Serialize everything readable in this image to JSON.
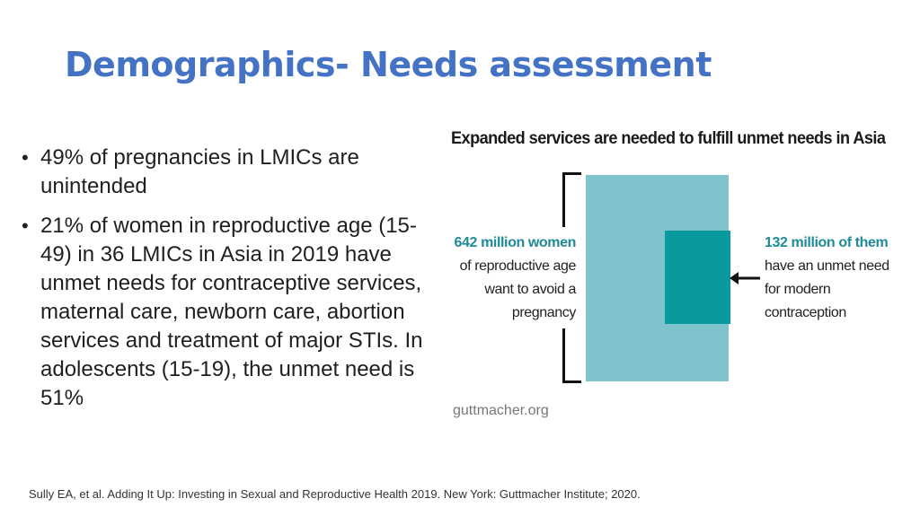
{
  "slide": {
    "title": "Demographics- Needs assessment",
    "bullets": [
      "49% of pregnancies in LMICs are unintended",
      "21% of women in reproductive age (15-49) in 36 LMICs in Asia in 2019 have unmet needs for contraceptive services, maternal care, newborn care, abortion services and treatment of major STIs. In adolescents (15-19), the unmet need is 51%"
    ],
    "bullet_glyph": "•",
    "citation": "Sully EA, et al. Adding It Up: Investing in Sexual and Reproductive Health 2019. New York: Guttmacher Institute; 2020."
  },
  "infographic": {
    "title": "Expanded services are needed to fulfill unmet needs in Asia",
    "left_highlight": "642 million women",
    "left_text": "of reproductive age want to avoid a pregnancy",
    "right_highlight": "132 million of them",
    "right_text": "have an unmet need for modern contraception",
    "source": "guttmacher.org",
    "colors": {
      "large_box": "#7ec3cb",
      "small_box": "#0a9a9d",
      "highlight_text": "#1f8b97",
      "title": "#4472c4"
    }
  }
}
